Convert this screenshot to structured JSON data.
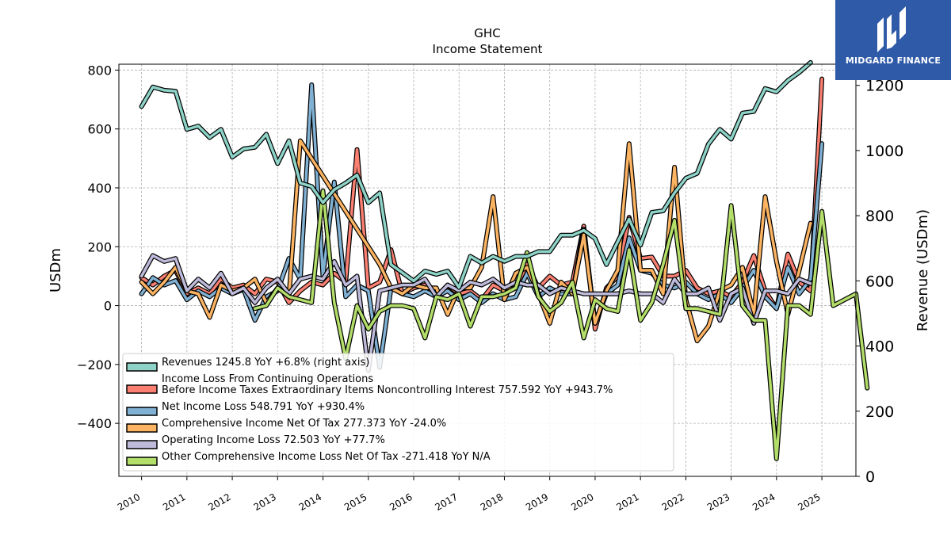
{
  "chart_data": {
    "type": "line",
    "title": "GHC",
    "subtitle": "Income Statement",
    "ylabel": "USDm",
    "ylabel_right": "Revenue (USDm)",
    "ylim": [
      -580,
      820
    ],
    "ylim_right": [
      0,
      1265
    ],
    "xlim": [
      2009.5,
      2025.75
    ],
    "yticks": [
      800,
      600,
      400,
      200,
      0,
      -200,
      -400
    ],
    "ytick_labels": [
      "800",
      "600",
      "400",
      "200",
      "0",
      "−200",
      "−400"
    ],
    "yticks_right": [
      1200,
      1000,
      800,
      600,
      400,
      200,
      0
    ],
    "xticks": [
      2010,
      2011,
      2012,
      2013,
      2014,
      2015,
      2016,
      2017,
      2018,
      2019,
      2020,
      2021,
      2022,
      2023,
      2024,
      2025
    ],
    "grid": true,
    "legend_position": "lower-left",
    "series": [
      {
        "name": "Revenues  1245.8 YoY +6.8% (right axis)",
        "legend_lines": [
          "Revenues  1245.8 YoY +6.8% (right axis)"
        ],
        "axis": "right",
        "color": "#8dd3c7",
        "start": 2010.0,
        "values": [
          1135,
          1195,
          1185,
          1182,
          1065,
          1075,
          1040,
          1065,
          980,
          1005,
          1010,
          1050,
          960,
          1030,
          900,
          890,
          840,
          880,
          900,
          925,
          840,
          870,
          650,
          625,
          600,
          630,
          620,
          630,
          580,
          675,
          655,
          675,
          660,
          675,
          675,
          690,
          690,
          740,
          740,
          755,
          730,
          650,
          720,
          790,
          710,
          810,
          815,
          870,
          915,
          930,
          1020,
          1065,
          1035,
          1115,
          1120,
          1190,
          1180,
          1215,
          1240,
          1270
        ]
      },
      {
        "name": "Income Loss From Continuing Operations Before Income Taxes Extraordinary Items Noncontrolling Interest  757.592 YoY +943.7%",
        "legend_lines": [
          "Income Loss From Continuing Operations",
          "Before Income Taxes Extraordinary Items Noncontrolling Interest  757.592 YoY +943.7%"
        ],
        "axis": "left",
        "color": "#fb8072",
        "start": 2010.0,
        "values": [
          95,
          70,
          100,
          120,
          40,
          60,
          40,
          90,
          60,
          70,
          40,
          90,
          80,
          10,
          50,
          80,
          70,
          110,
          80,
          530,
          60,
          80,
          190,
          40,
          60,
          70,
          30,
          70,
          40,
          50,
          20,
          70,
          50,
          60,
          140,
          60,
          100,
          70,
          80,
          270,
          -80,
          60,
          100,
          300,
          160,
          165,
          100,
          100,
          120,
          60,
          40,
          50,
          30,
          80,
          170,
          50,
          -10,
          175,
          80,
          50,
          770
        ]
      },
      {
        "name": "Net Income Loss  548.791 YoY +930.4%",
        "legend_lines": [
          "Net Income Loss  548.791 YoY +930.4%"
        ],
        "axis": "left",
        "color": "#80b1d3",
        "start": 2010.0,
        "values": [
          40,
          95,
          70,
          85,
          20,
          50,
          30,
          60,
          40,
          55,
          -50,
          30,
          50,
          160,
          90,
          750,
          100,
          420,
          30,
          70,
          50,
          -210,
          60,
          40,
          30,
          50,
          30,
          50,
          20,
          40,
          10,
          40,
          20,
          30,
          110,
          30,
          60,
          40,
          40,
          260,
          -60,
          40,
          70,
          230,
          120,
          110,
          70,
          60,
          80,
          40,
          20,
          40,
          10,
          60,
          120,
          30,
          -10,
          130,
          40,
          90,
          550
        ]
      },
      {
        "name": "Comprehensive Income Net Of Tax  277.373 YoY -24.0%",
        "legend_lines": [
          "Comprehensive Income Net Of Tax  277.373 YoY -24.0%"
        ],
        "axis": "left",
        "color": "#fdb462",
        "start": 2010.0,
        "values": [
          80,
          40,
          80,
          130,
          50,
          40,
          -40,
          70,
          50,
          60,
          90,
          10,
          60,
          30,
          560,
          500,
          440,
          380,
          320,
          260,
          200,
          140,
          60,
          40,
          70,
          60,
          60,
          -30,
          60,
          60,
          130,
          370,
          20,
          110,
          130,
          40,
          -60,
          80,
          40,
          240,
          -60,
          50,
          120,
          550,
          120,
          120,
          40,
          470,
          20,
          -120,
          -70,
          50,
          70,
          130,
          -30,
          370,
          150,
          -30,
          120,
          280
        ]
      },
      {
        "name": "Operating Income Loss  72.503 YoY +77.7%",
        "legend_lines": [
          "Operating Income Loss  72.503 YoY +77.7%"
        ],
        "axis": "left",
        "color": "#bebada",
        "start": 2010.0,
        "values": [
          100,
          170,
          150,
          160,
          50,
          90,
          60,
          110,
          40,
          60,
          10,
          60,
          90,
          40,
          90,
          100,
          90,
          150,
          70,
          100,
          -220,
          50,
          60,
          70,
          70,
          90,
          30,
          70,
          50,
          80,
          70,
          90,
          60,
          80,
          70,
          70,
          40,
          60,
          50,
          40,
          40,
          40,
          40,
          50,
          40,
          40,
          10,
          90,
          40,
          40,
          60,
          -50,
          40,
          60,
          -60,
          50,
          50,
          40,
          90,
          75
        ]
      },
      {
        "name": "Other Comprehensive Income Loss Net Of Tax  -271.418 YoY N/A",
        "legend_lines": [
          "Other Comprehensive Income Loss Net Of Tax  -271.418 YoY N/A"
        ],
        "axis": "left",
        "color": "#b3de69",
        "start": 2012.5,
        "values": [
          -10,
          0,
          60,
          30,
          20,
          10,
          390,
          10,
          -180,
          0,
          -80,
          -20,
          0,
          0,
          -10,
          -110,
          30,
          20,
          40,
          -70,
          30,
          30,
          40,
          60,
          180,
          30,
          -20,
          10,
          80,
          -110,
          20,
          -10,
          -20,
          190,
          -50,
          10,
          140,
          290,
          -10,
          -10,
          -20,
          -30,
          340,
          0,
          -50,
          -50,
          -520,
          0,
          0,
          -30,
          320,
          0,
          20,
          40,
          -280
        ]
      }
    ]
  }
}
